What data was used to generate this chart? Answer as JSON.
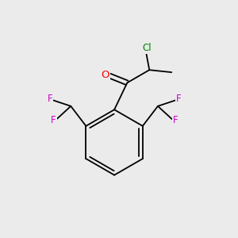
{
  "background_color": "#ebebeb",
  "bond_color": "#000000",
  "atom_colors": {
    "Cl": "#008000",
    "O": "#ff0000",
    "F": "#cc00cc"
  },
  "font_size_atoms": 8.5,
  "bond_width": 1.3,
  "fig_size": [
    3.0,
    3.0
  ],
  "dpi": 100
}
